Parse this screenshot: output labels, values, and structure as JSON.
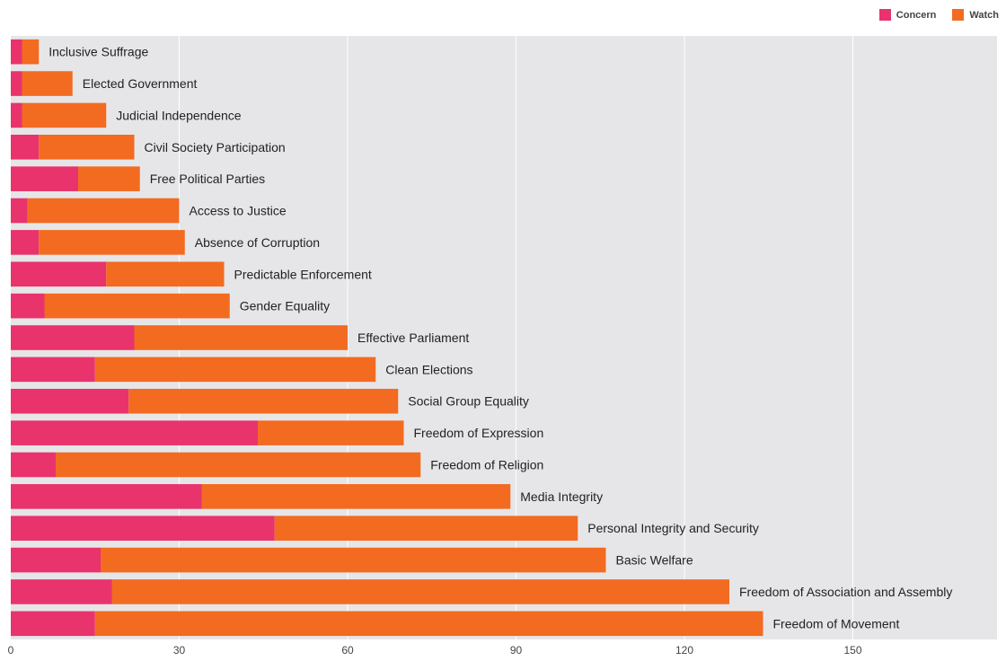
{
  "colors": {
    "concern": "#e8336d",
    "watch": "#f26b21",
    "plot_background": "#e6e6e8",
    "gridline": "#ffffff",
    "label_text": "#222222",
    "tick_text": "#444444"
  },
  "legend": {
    "concern_label": "Concern",
    "watch_label": "Watch"
  },
  "chart_data": {
    "type": "bar",
    "orientation": "horizontal",
    "stacked": true,
    "categories": [
      "Inclusive Suffrage",
      "Elected Government",
      "Judicial Independence",
      "Civil Society Participation",
      "Free Political Parties",
      "Access to Justice",
      "Absence of Corruption",
      "Predictable Enforcement",
      "Gender Equality",
      "Effective Parliament",
      "Clean Elections",
      "Social Group Equality",
      "Freedom of Expression",
      "Freedom of Religion",
      "Media Integrity",
      "Personal Integrity and Security",
      "Basic Welfare",
      "Freedom of Association and Assembly",
      "Freedom of Movement"
    ],
    "series": [
      {
        "name": "Concern",
        "values": [
          2,
          2,
          2,
          5,
          12,
          3,
          5,
          17,
          6,
          22,
          15,
          21,
          44,
          8,
          34,
          47,
          16,
          18,
          15
        ]
      },
      {
        "name": "Watch",
        "values": [
          3,
          9,
          15,
          17,
          11,
          27,
          26,
          21,
          33,
          38,
          50,
          48,
          26,
          65,
          55,
          54,
          90,
          110,
          119
        ]
      }
    ],
    "x_ticks": [
      0,
      30,
      60,
      90,
      120,
      150
    ],
    "x_tick_labels": [
      "0",
      "30",
      "60",
      "90",
      "120",
      "150"
    ],
    "xlim": [
      0,
      175
    ],
    "grid": true,
    "legend_position": "top-right",
    "bar_labels": "right of bar end"
  }
}
